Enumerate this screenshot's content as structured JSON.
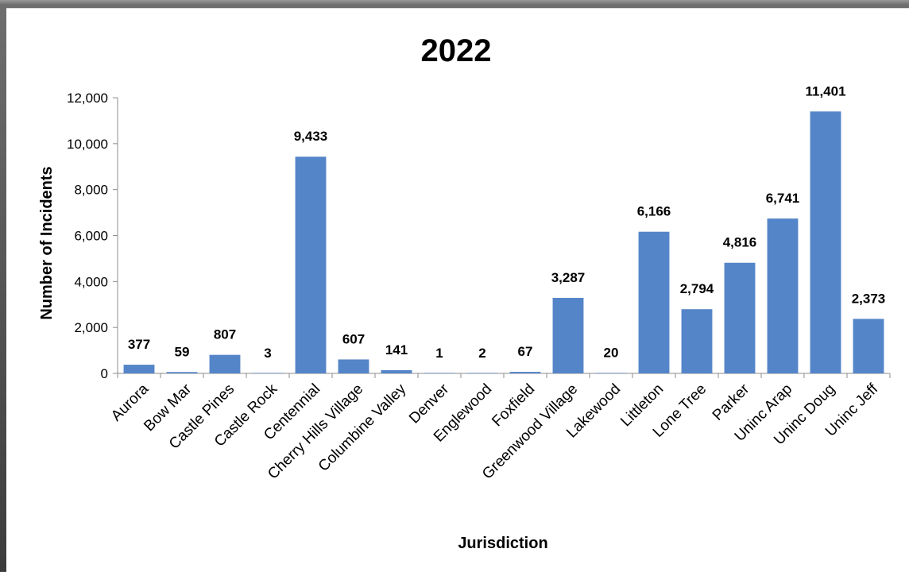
{
  "colors": {
    "bar": "#5585c9",
    "axis": "#8c8c8c"
  },
  "chart_data": {
    "type": "bar",
    "title": "2022",
    "xlabel": "Jurisdiction",
    "ylabel": "Number of Incidents",
    "ylim": [
      0,
      12000
    ],
    "yticks": [
      0,
      2000,
      4000,
      6000,
      8000,
      10000,
      12000
    ],
    "ytick_labels": [
      "0",
      "2,000",
      "4,000",
      "6,000",
      "8,000",
      "10,000",
      "12,000"
    ],
    "grid": false,
    "legend": "none",
    "categories": [
      "Aurora",
      "Bow Mar",
      "Castle Pines",
      "Castle Rock",
      "Centennial",
      "Cherry Hills Village",
      "Columbine Valley",
      "Denver",
      "Englewood",
      "Foxfield",
      "Greenwood Village",
      "Lakewood",
      "Littleton",
      "Lone Tree",
      "Parker",
      "Uninc Arap",
      "Uninc Doug",
      "Uninc Jeff"
    ],
    "values": [
      377,
      59,
      807,
      3,
      9433,
      607,
      141,
      1,
      2,
      67,
      3287,
      20,
      6166,
      2794,
      4816,
      6741,
      11401,
      2373
    ],
    "data_labels": [
      "377",
      "59",
      "807",
      "3",
      "9,433",
      "607",
      "141",
      "1",
      "2",
      "67",
      "3,287",
      "20",
      "6,166",
      "2,794",
      "4,816",
      "6,741",
      "11,401",
      "2,373"
    ]
  }
}
